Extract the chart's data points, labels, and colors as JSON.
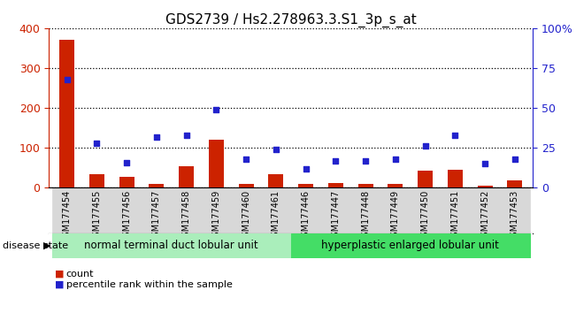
{
  "title": "GDS2739 / Hs2.278963.3.S1_3p_s_at",
  "samples": [
    "GSM177454",
    "GSM177455",
    "GSM177456",
    "GSM177457",
    "GSM177458",
    "GSM177459",
    "GSM177460",
    "GSM177461",
    "GSM177446",
    "GSM177447",
    "GSM177448",
    "GSM177449",
    "GSM177450",
    "GSM177451",
    "GSM177452",
    "GSM177453"
  ],
  "counts": [
    370,
    35,
    28,
    10,
    55,
    120,
    10,
    35,
    10,
    12,
    10,
    10,
    42,
    45,
    5,
    18
  ],
  "percentiles": [
    68,
    28,
    16,
    32,
    33,
    49,
    18,
    24,
    12,
    17,
    17,
    18,
    26,
    33,
    15,
    18
  ],
  "group1_label": "normal terminal duct lobular unit",
  "group2_label": "hyperplastic enlarged lobular unit",
  "group1_count": 8,
  "group2_count": 8,
  "disease_state_label": "disease state",
  "bar_color": "#cc2200",
  "dot_color": "#2222cc",
  "ylim_left": [
    0,
    400
  ],
  "ylim_right": [
    0,
    100
  ],
  "yticks_left": [
    0,
    100,
    200,
    300,
    400
  ],
  "yticks_right": [
    0,
    25,
    50,
    75,
    100
  ],
  "yticklabels_right": [
    "0",
    "25",
    "50",
    "75",
    "100%"
  ],
  "legend_count_label": "count",
  "legend_pct_label": "percentile rank within the sample",
  "bg_color": "#d8d8d8",
  "group1_color": "#aaeebb",
  "group2_color": "#44dd66",
  "title_fontsize": 11,
  "axis_label_color_left": "#cc2200",
  "axis_label_color_right": "#2222cc",
  "xlim": [
    -0.6,
    15.6
  ],
  "bar_width": 0.5
}
